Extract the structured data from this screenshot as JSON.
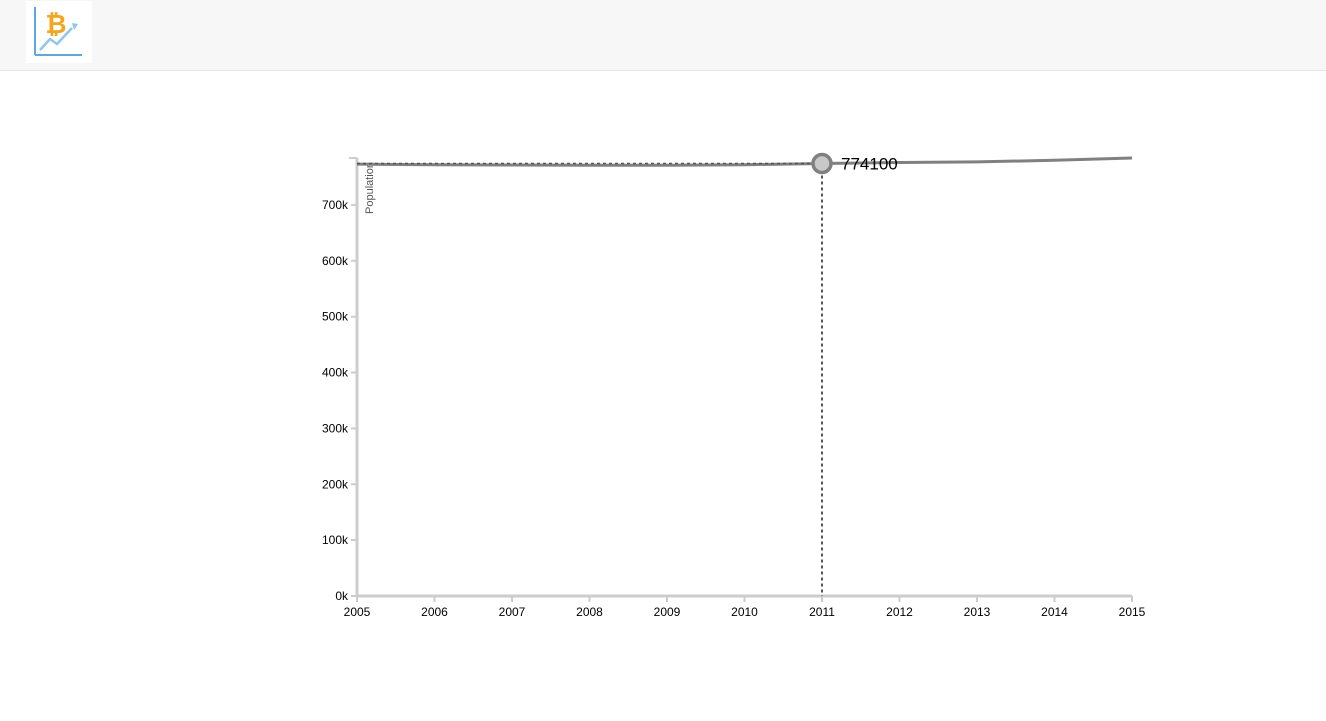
{
  "header": {
    "logo_icon": "bitcoin-growth-chart-icon"
  },
  "colors": {
    "line": "#808080",
    "axis": "#cccccc",
    "marker_fill": "#c8c8c8",
    "guide": "#555555",
    "header_bg": "#f7f7f7"
  },
  "chart_data": {
    "type": "line",
    "ylabel": "Population",
    "xlabel": "",
    "x": [
      2005,
      2006,
      2007,
      2008,
      2009,
      2010,
      2011,
      2012,
      2013,
      2014,
      2015
    ],
    "series": [
      {
        "values": [
          773000,
          772000,
          771500,
          771000,
          771000,
          772000,
          774100,
          776000,
          777000,
          780000,
          784000
        ]
      }
    ],
    "xlim": [
      2005,
      2015
    ],
    "ylim": [
      0,
      784000
    ],
    "x_ticks": [
      "2005",
      "2006",
      "2007",
      "2008",
      "2009",
      "2010",
      "2011",
      "2012",
      "2013",
      "2014",
      "2015"
    ],
    "y_ticks": [
      {
        "value": 0,
        "label": "0k"
      },
      {
        "value": 100000,
        "label": "100k"
      },
      {
        "value": 200000,
        "label": "200k"
      },
      {
        "value": 300000,
        "label": "300k"
      },
      {
        "value": 400000,
        "label": "400k"
      },
      {
        "value": 500000,
        "label": "500k"
      },
      {
        "value": 600000,
        "label": "600k"
      },
      {
        "value": 700000,
        "label": "700k"
      }
    ],
    "focus": {
      "x": 2011,
      "value": 774100,
      "label": "774100"
    },
    "grid": false
  }
}
